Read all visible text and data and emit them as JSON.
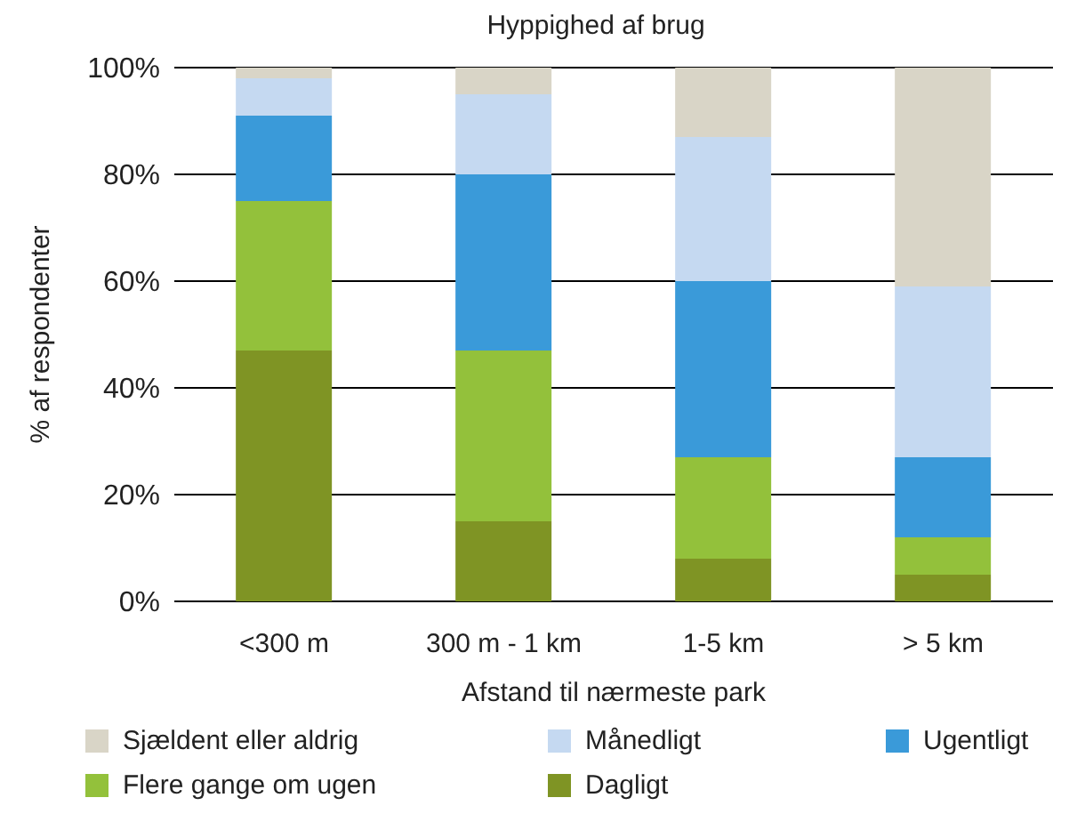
{
  "chart_data": {
    "type": "bar",
    "title": "Hyppighed af brug",
    "xlabel": "Afstand til nærmeste park",
    "ylabel": "% af respondenter",
    "categories": [
      "<300 m",
      "300 m - 1 km",
      "1-5 km",
      "> 5 km"
    ],
    "stacked": true,
    "ylim": [
      0,
      100
    ],
    "yticks": [
      {
        "value": 0,
        "label": "0%"
      },
      {
        "value": 20,
        "label": "20%"
      },
      {
        "value": 40,
        "label": "40%"
      },
      {
        "value": 60,
        "label": "60%"
      },
      {
        "value": 80,
        "label": "80%"
      },
      {
        "value": 100,
        "label": "100%"
      }
    ],
    "grid": "y",
    "legend": "bottom",
    "series": [
      {
        "name": "Dagligt",
        "color": "#7f9424",
        "values": [
          47,
          15,
          8,
          5
        ]
      },
      {
        "name": "Flere gange om ugen",
        "color": "#93c13b",
        "values": [
          28,
          32,
          19,
          7
        ]
      },
      {
        "name": "Ugentligt",
        "color": "#3a9ad9",
        "values": [
          16,
          33,
          33,
          15
        ]
      },
      {
        "name": "Månedligt",
        "color": "#c5d9f1",
        "values": [
          7,
          15,
          27,
          32
        ]
      },
      {
        "name": "Sjældent eller aldrig",
        "color": "#d9d5c7",
        "values": [
          2,
          5,
          13,
          41
        ]
      }
    ]
  }
}
